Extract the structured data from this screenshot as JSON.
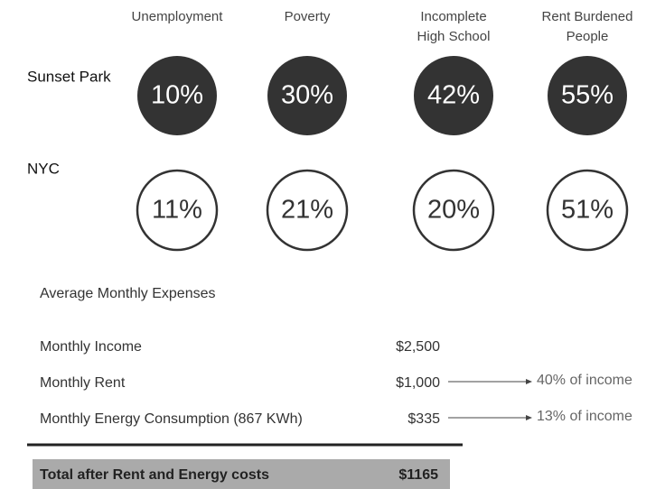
{
  "indicators": [
    [
      "Unemployment"
    ],
    [
      "Poverty"
    ],
    [
      "Incomplete",
      "High School"
    ],
    [
      "Rent Burdened",
      "People"
    ]
  ],
  "rows": [
    {
      "name": "Sunset Park",
      "values": [
        "10%",
        "30%",
        "42%",
        "55%"
      ]
    },
    {
      "name": "NYC",
      "values": [
        "11%",
        "21%",
        "20%",
        "51%"
      ]
    }
  ],
  "expenses": {
    "title": "Average Monthly Expenses",
    "items": [
      {
        "label": "Monthly Income",
        "amount": "$2,500"
      },
      {
        "label": "Monthly Rent",
        "amount": "$1,000",
        "note": "40% of income"
      },
      {
        "label": "Monthly Energy Consumption (867 KWh)",
        "amount": "$335",
        "note": "13% of income"
      }
    ],
    "total": {
      "label": "Total after Rent and Energy costs",
      "amount": "$1165"
    }
  }
}
